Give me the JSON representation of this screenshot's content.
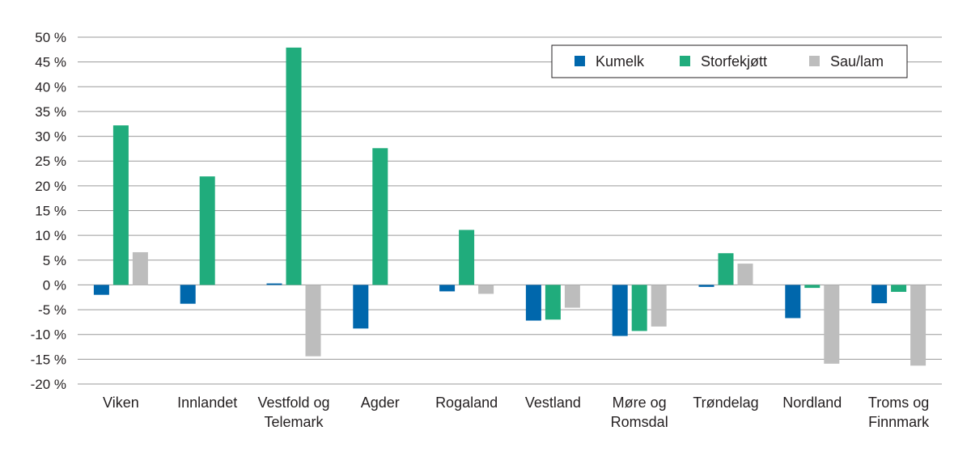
{
  "chart_data": {
    "type": "bar",
    "categories": [
      [
        "Viken"
      ],
      [
        "Innlandet"
      ],
      [
        "Vestfold og",
        "Telemark"
      ],
      [
        "Agder"
      ],
      [
        "Rogaland"
      ],
      [
        "Vestland"
      ],
      [
        "Møre og",
        "Romsdal"
      ],
      [
        "Trøndelag"
      ],
      [
        "Nordland"
      ],
      [
        "Troms og",
        "Finnmark"
      ]
    ],
    "series": [
      {
        "name": "Kumelk",
        "color": "#0067ac",
        "values": [
          -2.0,
          -3.8,
          0.3,
          -8.8,
          -1.3,
          -7.2,
          -10.3,
          -0.4,
          -6.7,
          -3.7
        ]
      },
      {
        "name": "Storfekjøtt",
        "color": "#20ac7c",
        "values": [
          32.2,
          21.9,
          47.9,
          27.6,
          11.1,
          -7.0,
          -9.3,
          6.4,
          -0.6,
          -1.4
        ]
      },
      {
        "name": "Sau/lam",
        "color": "#bdbdbd",
        "values": [
          6.6,
          null,
          -14.4,
          null,
          -1.8,
          -4.6,
          -8.4,
          4.3,
          -15.9,
          -16.3
        ]
      }
    ],
    "ylim": [
      -20,
      50
    ],
    "yticks": [
      50,
      45,
      40,
      35,
      30,
      25,
      20,
      15,
      10,
      5,
      0,
      -5,
      -10,
      -15,
      -20
    ],
    "ytick_labels": [
      "50 %",
      "45 %",
      "40 %",
      "35 %",
      "30 %",
      "25 %",
      "20 %",
      "15 %",
      "10 %",
      "5 %",
      "0 %",
      "-5 %",
      "-10 %",
      "-15 %",
      "-20 %"
    ],
    "grid": true,
    "legend_position": "top-right",
    "title": "",
    "xlabel": "",
    "ylabel": ""
  }
}
